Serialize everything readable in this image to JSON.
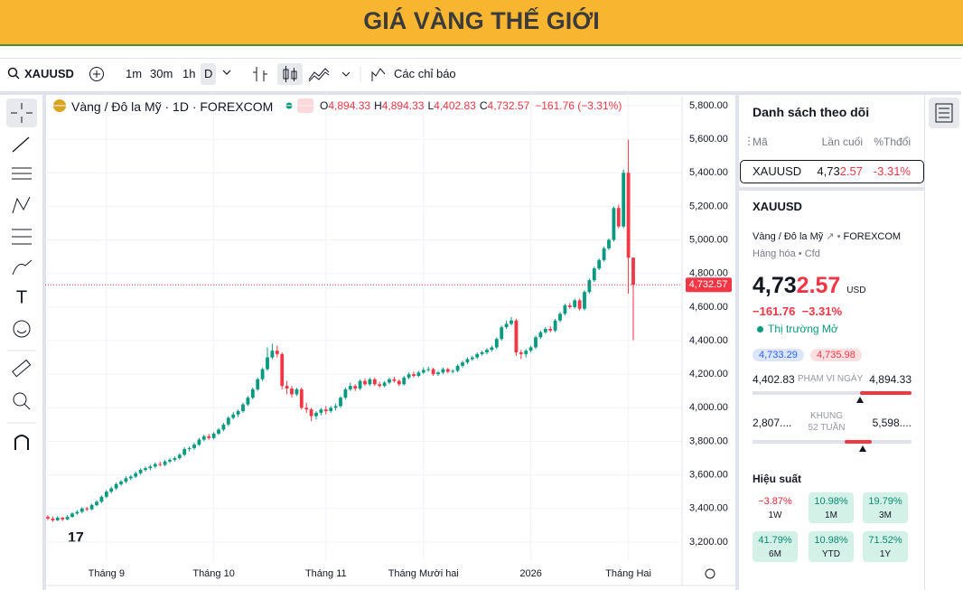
{
  "header": {
    "title": "GIÁ VÀNG THẾ GIỚI"
  },
  "toolbar": {
    "symbol": "XAUUSD",
    "intervals": [
      "1m",
      "30m",
      "1h",
      "D"
    ],
    "indicators": "Các chỉ báo"
  },
  "chart_data": {
    "type": "candlestick",
    "title": "Vàng / Đô la Mỹ · 1D · FOREXCOM",
    "legend_values": [
      {
        "key": "O",
        "value": "4,894.33"
      },
      {
        "key": "H",
        "value": "4,894.33"
      },
      {
        "key": "L",
        "value": "4,402.83"
      },
      {
        "key": "C",
        "value": "4,732.57"
      }
    ],
    "change": "−161.76 (−3.31%)",
    "up_color": "#089981",
    "down_color": "#f23645",
    "grid": true,
    "ylim": [
      3092,
      5875
    ],
    "yticks": [
      {
        "value": 3200,
        "label": "3,200.00"
      },
      {
        "value": 3400,
        "label": "3,400.00"
      },
      {
        "value": 3600,
        "label": "3,600.00"
      },
      {
        "value": 3800,
        "label": "3,800.00"
      },
      {
        "value": 4000,
        "label": "4,000.00"
      },
      {
        "value": 4200,
        "label": "4,200.00"
      },
      {
        "value": 4400,
        "label": "4,400.00"
      },
      {
        "value": 4600,
        "label": "4,600.00"
      },
      {
        "value": 4800,
        "label": "4,800.00"
      },
      {
        "value": 5000,
        "label": "5,000.00"
      },
      {
        "value": 5200,
        "label": "5,200.00"
      },
      {
        "value": 5400,
        "label": "5,400.00"
      },
      {
        "value": 5600,
        "label": "5,600.00"
      },
      {
        "value": 5800,
        "label": "5,800.00"
      }
    ],
    "last_price": {
      "value": 4732.57,
      "label": "4,732.57"
    },
    "categories": [
      null,
      null,
      null,
      null,
      null,
      null,
      null,
      null,
      null,
      null,
      null,
      null,
      "Tháng 9",
      null,
      null,
      null,
      null,
      null,
      null,
      null,
      null,
      null,
      null,
      null,
      null,
      null,
      null,
      null,
      null,
      null,
      null,
      null,
      null,
      null,
      "Tháng 10",
      null,
      null,
      null,
      null,
      null,
      null,
      null,
      null,
      null,
      null,
      null,
      null,
      null,
      null,
      null,
      null,
      null,
      null,
      null,
      null,
      null,
      null,
      "Tháng 11",
      null,
      null,
      null,
      null,
      null,
      null,
      null,
      null,
      null,
      null,
      null,
      null,
      null,
      null,
      null,
      null,
      null,
      null,
      null,
      "Tháng Mười hai",
      null,
      null,
      null,
      null,
      null,
      null,
      null,
      null,
      null,
      null,
      null,
      null,
      null,
      null,
      null,
      null,
      null,
      null,
      null,
      null,
      null,
      "2026",
      null,
      null,
      null,
      null,
      null,
      null,
      null,
      null,
      null,
      null,
      null,
      null,
      null,
      null,
      null,
      null,
      null,
      null,
      null,
      "Tháng Hai"
    ],
    "ohlc": [
      [
        3350,
        3360,
        3330,
        3340
      ],
      [
        3340,
        3352,
        3320,
        3330
      ],
      [
        3330,
        3355,
        3325,
        3345
      ],
      [
        3345,
        3350,
        3325,
        3335
      ],
      [
        3335,
        3360,
        3330,
        3350
      ],
      [
        3350,
        3378,
        3345,
        3370
      ],
      [
        3370,
        3390,
        3362,
        3380
      ],
      [
        3380,
        3408,
        3372,
        3400
      ],
      [
        3400,
        3410,
        3385,
        3395
      ],
      [
        3395,
        3428,
        3390,
        3420
      ],
      [
        3420,
        3450,
        3412,
        3440
      ],
      [
        3440,
        3478,
        3432,
        3470
      ],
      [
        3470,
        3510,
        3462,
        3500
      ],
      [
        3500,
        3530,
        3490,
        3520
      ],
      [
        3520,
        3555,
        3510,
        3545
      ],
      [
        3545,
        3570,
        3535,
        3560
      ],
      [
        3560,
        3592,
        3550,
        3580
      ],
      [
        3580,
        3600,
        3568,
        3590
      ],
      [
        3590,
        3620,
        3582,
        3610
      ],
      [
        3610,
        3640,
        3600,
        3630
      ],
      [
        3630,
        3650,
        3620,
        3640
      ],
      [
        3640,
        3660,
        3628,
        3650
      ],
      [
        3650,
        3675,
        3640,
        3665
      ],
      [
        3665,
        3680,
        3650,
        3660
      ],
      [
        3660,
        3690,
        3652,
        3680
      ],
      [
        3680,
        3700,
        3670,
        3690
      ],
      [
        3690,
        3710,
        3680,
        3700
      ],
      [
        3700,
        3730,
        3692,
        3720
      ],
      [
        3720,
        3765,
        3712,
        3754
      ],
      [
        3754,
        3770,
        3740,
        3760
      ],
      [
        3760,
        3792,
        3750,
        3780
      ],
      [
        3780,
        3820,
        3772,
        3810
      ],
      [
        3810,
        3840,
        3800,
        3830
      ],
      [
        3830,
        3845,
        3810,
        3820
      ],
      [
        3820,
        3855,
        3812,
        3846
      ],
      [
        3846,
        3880,
        3838,
        3870
      ],
      [
        3870,
        3910,
        3860,
        3900
      ],
      [
        3900,
        3950,
        3890,
        3940
      ],
      [
        3940,
        3975,
        3930,
        3960
      ],
      [
        3960,
        3990,
        3945,
        3980
      ],
      [
        3980,
        4030,
        3970,
        4020
      ],
      [
        4020,
        4070,
        4010,
        4060
      ],
      [
        4060,
        4120,
        4050,
        4110
      ],
      [
        4110,
        4180,
        4100,
        4170
      ],
      [
        4170,
        4240,
        4160,
        4230
      ],
      [
        4230,
        4360,
        4220,
        4300
      ],
      [
        4300,
        4381,
        4290,
        4340
      ],
      [
        4340,
        4370,
        4300,
        4320
      ],
      [
        4320,
        4330,
        4110,
        4130
      ],
      [
        4130,
        4160,
        4080,
        4115
      ],
      [
        4115,
        4130,
        4060,
        4080
      ],
      [
        4080,
        4120,
        4070,
        4110
      ],
      [
        4110,
        4120,
        3990,
        4000
      ],
      [
        4000,
        4030,
        3970,
        3990
      ],
      [
        3990,
        4000,
        3920,
        3950
      ],
      [
        3950,
        3980,
        3930,
        3970
      ],
      [
        3970,
        4000,
        3955,
        3990
      ],
      [
        3990,
        4010,
        3960,
        3980
      ],
      [
        3980,
        4010,
        3970,
        4000
      ],
      [
        4000,
        4025,
        3985,
        4010
      ],
      [
        4010,
        4070,
        4000,
        4060
      ],
      [
        4060,
        4120,
        4050,
        4110
      ],
      [
        4110,
        4150,
        4100,
        4130
      ],
      [
        4130,
        4140,
        4100,
        4115
      ],
      [
        4115,
        4170,
        4105,
        4160
      ],
      [
        4160,
        4175,
        4130,
        4140
      ],
      [
        4140,
        4180,
        4130,
        4170
      ],
      [
        4170,
        4180,
        4130,
        4140
      ],
      [
        4140,
        4155,
        4120,
        4130
      ],
      [
        4130,
        4160,
        4122,
        4150
      ],
      [
        4150,
        4180,
        4140,
        4170
      ],
      [
        4170,
        4185,
        4150,
        4160
      ],
      [
        4160,
        4170,
        4130,
        4140
      ],
      [
        4140,
        4190,
        4132,
        4180
      ],
      [
        4180,
        4210,
        4170,
        4200
      ],
      [
        4200,
        4215,
        4180,
        4190
      ],
      [
        4190,
        4220,
        4182,
        4210
      ],
      [
        4210,
        4240,
        4200,
        4225
      ],
      [
        4225,
        4245,
        4215,
        4230
      ],
      [
        4230,
        4238,
        4190,
        4200
      ],
      [
        4200,
        4220,
        4190,
        4210
      ],
      [
        4210,
        4240,
        4200,
        4230
      ],
      [
        4230,
        4238,
        4205,
        4215
      ],
      [
        4215,
        4230,
        4205,
        4220
      ],
      [
        4220,
        4260,
        4212,
        4250
      ],
      [
        4250,
        4280,
        4240,
        4270
      ],
      [
        4270,
        4300,
        4260,
        4290
      ],
      [
        4290,
        4310,
        4280,
        4300
      ],
      [
        4300,
        4330,
        4290,
        4320
      ],
      [
        4320,
        4340,
        4310,
        4330
      ],
      [
        4330,
        4355,
        4318,
        4345
      ],
      [
        4345,
        4370,
        4335,
        4360
      ],
      [
        4360,
        4420,
        4350,
        4410
      ],
      [
        4410,
        4490,
        4400,
        4480
      ],
      [
        4480,
        4520,
        4470,
        4500
      ],
      [
        4500,
        4540,
        4490,
        4520
      ],
      [
        4520,
        4530,
        4310,
        4330
      ],
      [
        4330,
        4345,
        4290,
        4320
      ],
      [
        4320,
        4350,
        4300,
        4340
      ],
      [
        4340,
        4370,
        4330,
        4360
      ],
      [
        4360,
        4430,
        4350,
        4420
      ],
      [
        4420,
        4460,
        4410,
        4450
      ],
      [
        4450,
        4480,
        4440,
        4470
      ],
      [
        4470,
        4485,
        4450,
        4460
      ],
      [
        4460,
        4530,
        4450,
        4520
      ],
      [
        4520,
        4570,
        4510,
        4560
      ],
      [
        4560,
        4620,
        4550,
        4610
      ],
      [
        4610,
        4625,
        4590,
        4600
      ],
      [
        4600,
        4650,
        4590,
        4640
      ],
      [
        4640,
        4650,
        4580,
        4590
      ],
      [
        4590,
        4700,
        4580,
        4690
      ],
      [
        4690,
        4770,
        4680,
        4760
      ],
      [
        4760,
        4840,
        4750,
        4830
      ],
      [
        4830,
        4890,
        4820,
        4880
      ],
      [
        4880,
        4960,
        4870,
        4950
      ],
      [
        4950,
        5010,
        4940,
        5000
      ],
      [
        5000,
        5200,
        4990,
        5190
      ],
      [
        5190,
        5210,
        5070,
        5080
      ],
      [
        5080,
        5420,
        5070,
        5400
      ],
      [
        5400,
        5598,
        4680,
        4894
      ],
      [
        4894.33,
        4894.33,
        4402.83,
        4732.57
      ]
    ]
  },
  "watchlist": {
    "title": "Danh sách theo dõi",
    "columns": [
      "Mã",
      "Lần cuối",
      "%Thđổi"
    ],
    "rows": [
      {
        "symbol": "XAUUSD",
        "last_main": "4,73",
        "last_tail": "2.57",
        "change": "-3.31%"
      }
    ]
  },
  "details": {
    "symbol": "XAUUSD",
    "name": "Vàng / Đô la Mỹ",
    "exchange": "FOREXCOM",
    "category": "Hàng hóa",
    "kind": "Cfd",
    "price_main": "4,73",
    "price_tail": "2.57",
    "currency": "USD",
    "change": "−161.76",
    "change_pct": "−3.31%",
    "status": "Thị trường Mở",
    "bid": "4,733.29",
    "ask": "4,735.98",
    "day_range": {
      "low": "4,402.83",
      "label": "PHẠM VI NGÀY",
      "high": "4,894.33"
    },
    "week52_range": {
      "low": "2,807....",
      "label": "KHUNG 52 TUẦN",
      "high": "5,598...."
    },
    "performance": {
      "title": "Hiệu suất",
      "items": [
        {
          "value": "−3.87%",
          "period": "1W"
        },
        {
          "value": "10.98%",
          "period": "1M"
        },
        {
          "value": "19.79%",
          "period": "3M"
        },
        {
          "value": "41.79%",
          "period": "6M"
        },
        {
          "value": "10.98%",
          "period": "YTD"
        },
        {
          "value": "71.52%",
          "period": "1Y"
        }
      ]
    }
  }
}
